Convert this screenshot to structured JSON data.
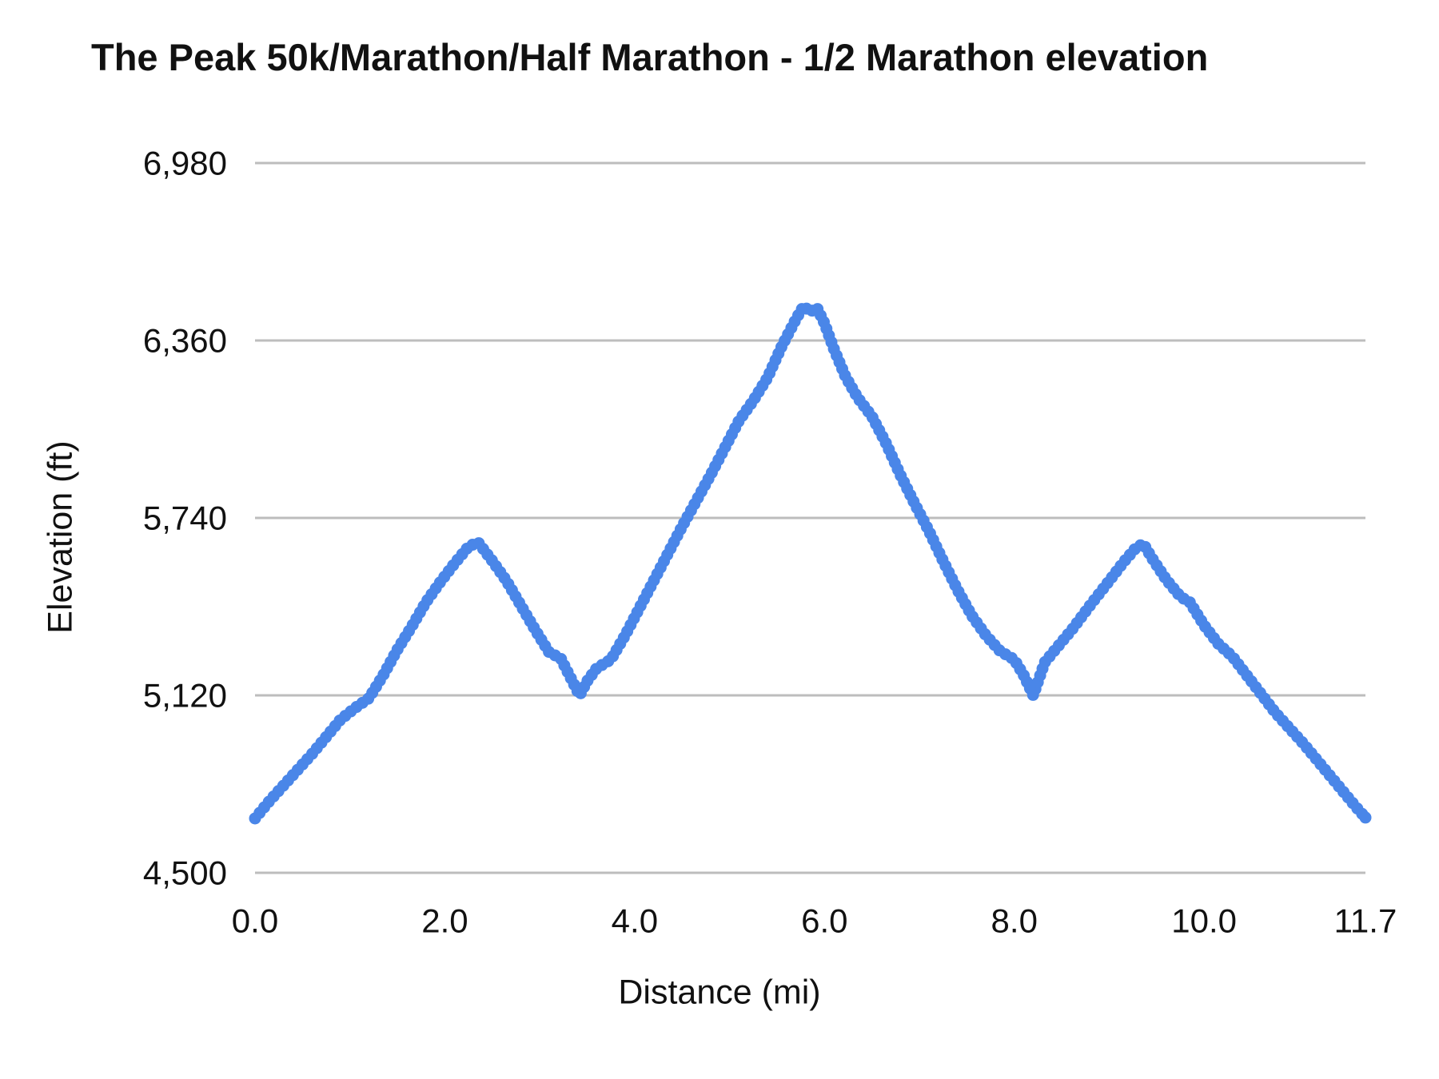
{
  "chart_data": {
    "type": "line",
    "style": "dotted-line",
    "title": "The Peak 50k/Marathon/Half Marathon - 1/2 Marathon elevation",
    "xlabel": "Distance (mi)",
    "ylabel": "Elevation (ft)",
    "xlim": [
      0,
      11.7
    ],
    "ylim": [
      4500,
      6980
    ],
    "grid": "horizontal-only",
    "legend": "none",
    "x_ticks": [
      {
        "value": 0,
        "label": "0.0"
      },
      {
        "value": 2,
        "label": "2.0"
      },
      {
        "value": 4,
        "label": "4.0"
      },
      {
        "value": 6,
        "label": "6.0"
      },
      {
        "value": 8,
        "label": "8.0"
      },
      {
        "value": 10,
        "label": "10.0"
      },
      {
        "value": 11.7,
        "label": "11.7"
      }
    ],
    "y_ticks": [
      {
        "value": 4500,
        "label": "4,500"
      },
      {
        "value": 5120,
        "label": "5,120"
      },
      {
        "value": 5740,
        "label": "5,740"
      },
      {
        "value": 6360,
        "label": "6,360"
      },
      {
        "value": 6980,
        "label": "6,980"
      }
    ],
    "series": [
      {
        "name": "1/2 Marathon elevation",
        "color": "#4a86e8",
        "points": [
          [
            0.0,
            4690
          ],
          [
            0.15,
            4750
          ],
          [
            0.3,
            4805
          ],
          [
            0.45,
            4860
          ],
          [
            0.6,
            4915
          ],
          [
            0.75,
            4975
          ],
          [
            0.9,
            5035
          ],
          [
            1.05,
            5075
          ],
          [
            1.2,
            5110
          ],
          [
            1.35,
            5190
          ],
          [
            1.5,
            5280
          ],
          [
            1.65,
            5360
          ],
          [
            1.8,
            5445
          ],
          [
            1.95,
            5515
          ],
          [
            2.1,
            5580
          ],
          [
            2.25,
            5640
          ],
          [
            2.35,
            5655
          ],
          [
            2.5,
            5590
          ],
          [
            2.65,
            5520
          ],
          [
            2.8,
            5435
          ],
          [
            2.95,
            5350
          ],
          [
            3.1,
            5270
          ],
          [
            3.22,
            5250
          ],
          [
            3.32,
            5185
          ],
          [
            3.42,
            5120
          ],
          [
            3.5,
            5170
          ],
          [
            3.6,
            5215
          ],
          [
            3.75,
            5245
          ],
          [
            3.9,
            5330
          ],
          [
            4.05,
            5425
          ],
          [
            4.2,
            5520
          ],
          [
            4.35,
            5615
          ],
          [
            4.5,
            5710
          ],
          [
            4.65,
            5800
          ],
          [
            4.8,
            5890
          ],
          [
            4.95,
            5985
          ],
          [
            5.1,
            6080
          ],
          [
            5.25,
            6150
          ],
          [
            5.4,
            6230
          ],
          [
            5.55,
            6340
          ],
          [
            5.7,
            6435
          ],
          [
            5.78,
            6480
          ],
          [
            5.85,
            6460
          ],
          [
            5.92,
            6475
          ],
          [
            6.0,
            6420
          ],
          [
            6.1,
            6330
          ],
          [
            6.22,
            6235
          ],
          [
            6.35,
            6160
          ],
          [
            6.5,
            6095
          ],
          [
            6.65,
            6000
          ],
          [
            6.8,
            5890
          ],
          [
            6.95,
            5790
          ],
          [
            7.1,
            5695
          ],
          [
            7.25,
            5590
          ],
          [
            7.4,
            5490
          ],
          [
            7.55,
            5400
          ],
          [
            7.7,
            5330
          ],
          [
            7.85,
            5275
          ],
          [
            8.0,
            5245
          ],
          [
            8.1,
            5190
          ],
          [
            8.2,
            5120
          ],
          [
            8.32,
            5235
          ],
          [
            8.47,
            5295
          ],
          [
            8.62,
            5355
          ],
          [
            8.8,
            5435
          ],
          [
            9.0,
            5520
          ],
          [
            9.15,
            5585
          ],
          [
            9.28,
            5635
          ],
          [
            9.36,
            5650
          ],
          [
            9.45,
            5600
          ],
          [
            9.6,
            5525
          ],
          [
            9.75,
            5465
          ],
          [
            9.85,
            5445
          ],
          [
            10.0,
            5365
          ],
          [
            10.15,
            5300
          ],
          [
            10.3,
            5255
          ],
          [
            10.45,
            5190
          ],
          [
            10.6,
            5125
          ],
          [
            10.75,
            5060
          ],
          [
            10.9,
            5005
          ],
          [
            11.05,
            4950
          ],
          [
            11.2,
            4890
          ],
          [
            11.35,
            4830
          ],
          [
            11.5,
            4770
          ],
          [
            11.6,
            4730
          ],
          [
            11.7,
            4693
          ]
        ]
      }
    ]
  },
  "colors": {
    "background": "#ffffff",
    "gridline": "#bdbdbd",
    "text": "#111111",
    "series_blue": "#4a86e8"
  }
}
